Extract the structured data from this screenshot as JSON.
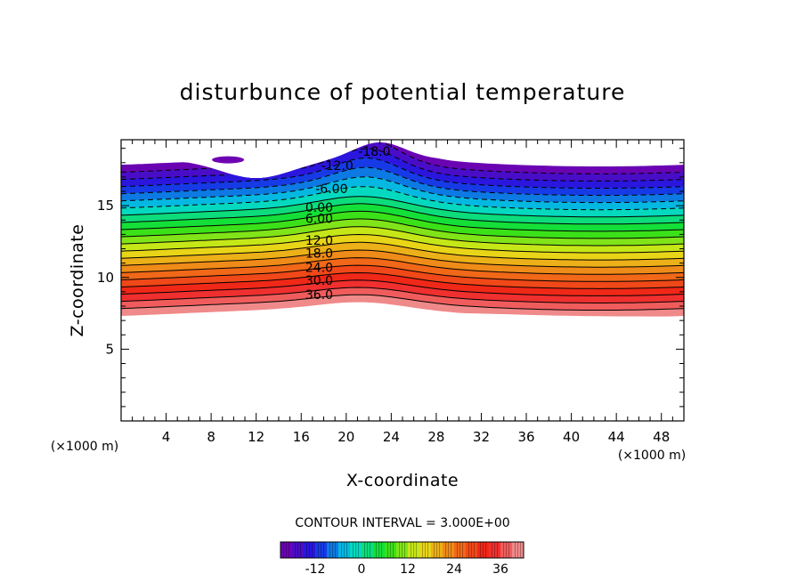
{
  "chart_data": {
    "type": "contour",
    "title": "disturbunce of potential temperature",
    "xlabel": "X-coordinate",
    "ylabel": "Z-coordinate",
    "x_unit": "(×1000 m)",
    "z_unit": "(×1000 m)",
    "xlim": [
      0,
      50
    ],
    "ylim": [
      0,
      19.6
    ],
    "x_ticks": [
      4,
      8,
      12,
      16,
      20,
      24,
      28,
      32,
      36,
      40,
      44,
      48
    ],
    "y_ticks": [
      5,
      10,
      15
    ],
    "contour_interval_text": "CONTOUR INTERVAL = 3.000E+00",
    "contour_interval": 3.0,
    "contour_labels": [
      {
        "text": "-18.0",
        "x": 22.5,
        "z": 18.8
      },
      {
        "text": "-12.0",
        "x": 19.2,
        "z": 17.8
      },
      {
        "text": "-6.00",
        "x": 18.7,
        "z": 16.2
      },
      {
        "text": "0.00",
        "x": 17.6,
        "z": 14.9
      },
      {
        "text": "6.00",
        "x": 17.6,
        "z": 14.1
      },
      {
        "text": "12.0",
        "x": 17.6,
        "z": 12.6
      },
      {
        "text": "18.0",
        "x": 17.6,
        "z": 11.7
      },
      {
        "text": "24.0",
        "x": 17.6,
        "z": 10.7
      },
      {
        "text": "30.0",
        "x": 17.6,
        "z": 9.8
      },
      {
        "text": "36.0",
        "x": 17.6,
        "z": 8.8
      }
    ],
    "field": {
      "base_zero_level_z": 14.5,
      "lapse_per_km": 6.0,
      "top_z": 18.2,
      "bottom_z": 7.3,
      "min": -21,
      "max": 42
    },
    "colorbar": {
      "min": -21,
      "max": 42,
      "tick_values": [
        -12,
        0,
        12,
        24,
        36
      ],
      "tick_labels": [
        "-12",
        "0",
        "12",
        "24",
        "36"
      ]
    },
    "colors": {
      "purple": "#7a00a8",
      "blue": "#1a1ae6",
      "cyan": "#00d8e0",
      "green": "#18e018",
      "yellow": "#e8e818",
      "orange": "#f07818",
      "red": "#f01818",
      "pink": "#f0a0a0"
    }
  }
}
